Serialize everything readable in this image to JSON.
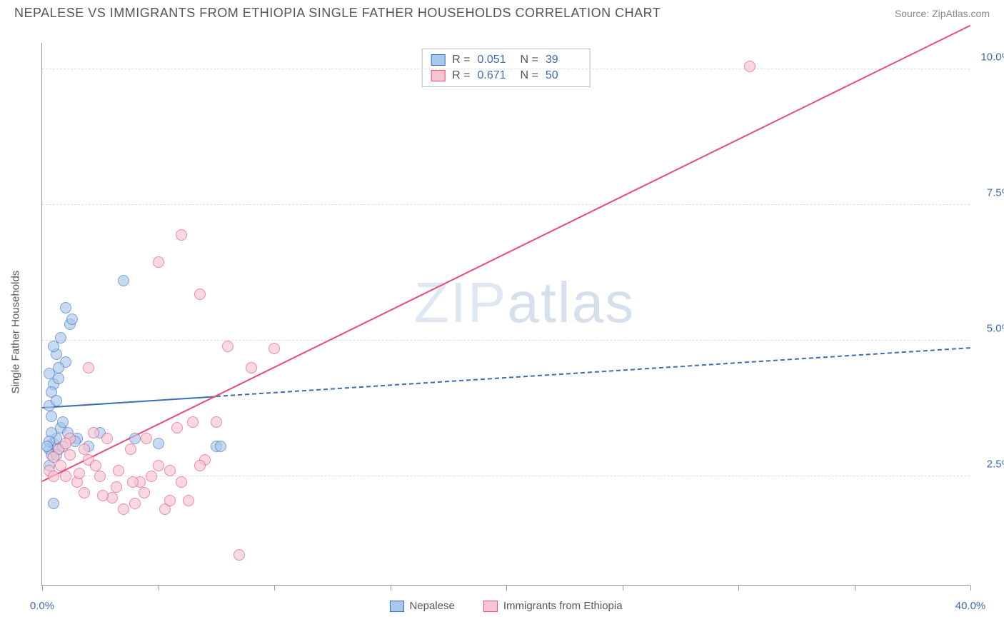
{
  "title": "NEPALESE VS IMMIGRANTS FROM ETHIOPIA SINGLE FATHER HOUSEHOLDS CORRELATION CHART",
  "source": "Source: ZipAtlas.com",
  "watermark_a": "ZIP",
  "watermark_b": "atlas",
  "y_axis_label": "Single Father Households",
  "chart": {
    "type": "scatter-correlation",
    "background_color": "#ffffff",
    "grid_color": "#dddddd",
    "axis_color": "#999999",
    "text_color": "#555555",
    "value_color": "#3b6db5",
    "xlim": [
      0,
      40
    ],
    "ylim": [
      0.5,
      10.5
    ],
    "x_ticks": [
      0,
      5,
      10,
      15,
      20,
      25,
      30,
      35,
      40
    ],
    "x_tick_labels": {
      "0": "0.0%",
      "40": "40.0%"
    },
    "y_ticks": [
      2.5,
      5.0,
      7.5,
      10.0
    ],
    "y_tick_labels": [
      "2.5%",
      "5.0%",
      "7.5%",
      "10.0%"
    ],
    "series": [
      {
        "name": "Nepalese",
        "color_fill": "#a8c8ec",
        "color_stroke": "#3b6db5",
        "R": "0.051",
        "N": "39",
        "trend": {
          "x1": 0,
          "y1": 3.75,
          "x2": 40,
          "y2": 4.85,
          "solid_until_x": 7.5
        },
        "points": [
          [
            0.3,
            3.0
          ],
          [
            0.5,
            3.1
          ],
          [
            0.4,
            2.9
          ],
          [
            0.6,
            3.2
          ],
          [
            0.3,
            2.7
          ],
          [
            0.7,
            3.0
          ],
          [
            0.4,
            3.3
          ],
          [
            0.5,
            2.0
          ],
          [
            0.8,
            3.4
          ],
          [
            0.3,
            3.15
          ],
          [
            0.6,
            2.9
          ],
          [
            0.2,
            3.05
          ],
          [
            0.5,
            4.2
          ],
          [
            0.3,
            4.4
          ],
          [
            0.7,
            4.3
          ],
          [
            0.6,
            4.75
          ],
          [
            0.4,
            3.6
          ],
          [
            0.8,
            5.05
          ],
          [
            1.2,
            5.3
          ],
          [
            1.0,
            5.6
          ],
          [
            1.3,
            5.4
          ],
          [
            0.9,
            3.5
          ],
          [
            1.1,
            3.3
          ],
          [
            1.5,
            3.2
          ],
          [
            2.0,
            3.05
          ],
          [
            2.5,
            3.3
          ],
          [
            3.5,
            6.1
          ],
          [
            4.0,
            3.2
          ],
          [
            5.0,
            3.1
          ],
          [
            7.5,
            3.05
          ],
          [
            7.7,
            3.05
          ],
          [
            1.0,
            4.6
          ],
          [
            0.7,
            4.5
          ],
          [
            0.5,
            4.9
          ],
          [
            0.4,
            4.05
          ],
          [
            0.3,
            3.8
          ],
          [
            0.6,
            3.9
          ],
          [
            0.9,
            3.05
          ],
          [
            1.4,
            3.15
          ]
        ]
      },
      {
        "name": "Immigrants from Ethiopia",
        "color_fill": "#f7c6d2",
        "color_stroke": "#e84a7a",
        "R": "0.671",
        "N": "50",
        "trend": {
          "x1": 0,
          "y1": 2.4,
          "x2": 40,
          "y2": 10.8,
          "solid_until_x": 40
        },
        "points": [
          [
            0.3,
            2.6
          ],
          [
            0.5,
            2.5
          ],
          [
            0.8,
            2.7
          ],
          [
            1.0,
            2.5
          ],
          [
            1.2,
            3.2
          ],
          [
            1.5,
            2.4
          ],
          [
            1.8,
            3.0
          ],
          [
            2.0,
            2.8
          ],
          [
            2.2,
            3.3
          ],
          [
            2.5,
            2.5
          ],
          [
            2.8,
            3.2
          ],
          [
            3.0,
            2.1
          ],
          [
            3.3,
            2.6
          ],
          [
            3.5,
            1.9
          ],
          [
            3.8,
            3.0
          ],
          [
            4.0,
            2.0
          ],
          [
            4.2,
            2.4
          ],
          [
            4.5,
            3.2
          ],
          [
            5.0,
            2.7
          ],
          [
            5.3,
            1.9
          ],
          [
            5.5,
            2.05
          ],
          [
            5.8,
            3.4
          ],
          [
            6.0,
            2.4
          ],
          [
            6.3,
            2.05
          ],
          [
            6.5,
            3.5
          ],
          [
            7.0,
            2.8
          ],
          [
            7.5,
            3.5
          ],
          [
            8.0,
            4.9
          ],
          [
            8.5,
            1.05
          ],
          [
            9.0,
            4.5
          ],
          [
            10.0,
            4.85
          ],
          [
            2.0,
            4.5
          ],
          [
            5.0,
            6.45
          ],
          [
            6.0,
            6.95
          ],
          [
            6.8,
            5.85
          ],
          [
            1.2,
            2.9
          ],
          [
            1.6,
            2.55
          ],
          [
            2.3,
            2.7
          ],
          [
            3.2,
            2.3
          ],
          [
            4.7,
            2.5
          ],
          [
            5.5,
            2.6
          ],
          [
            6.8,
            2.7
          ],
          [
            0.7,
            3.0
          ],
          [
            1.0,
            3.1
          ],
          [
            1.8,
            2.2
          ],
          [
            2.6,
            2.15
          ],
          [
            3.9,
            2.4
          ],
          [
            4.4,
            2.2
          ],
          [
            30.5,
            10.05
          ],
          [
            0.5,
            2.85
          ]
        ]
      }
    ]
  },
  "stats_legend": {
    "R_label": "R =",
    "N_label": "N ="
  },
  "bottom_legend": [
    {
      "swatch": "blue",
      "label": "Nepalese"
    },
    {
      "swatch": "pink",
      "label": "Immigrants from Ethiopia"
    }
  ]
}
